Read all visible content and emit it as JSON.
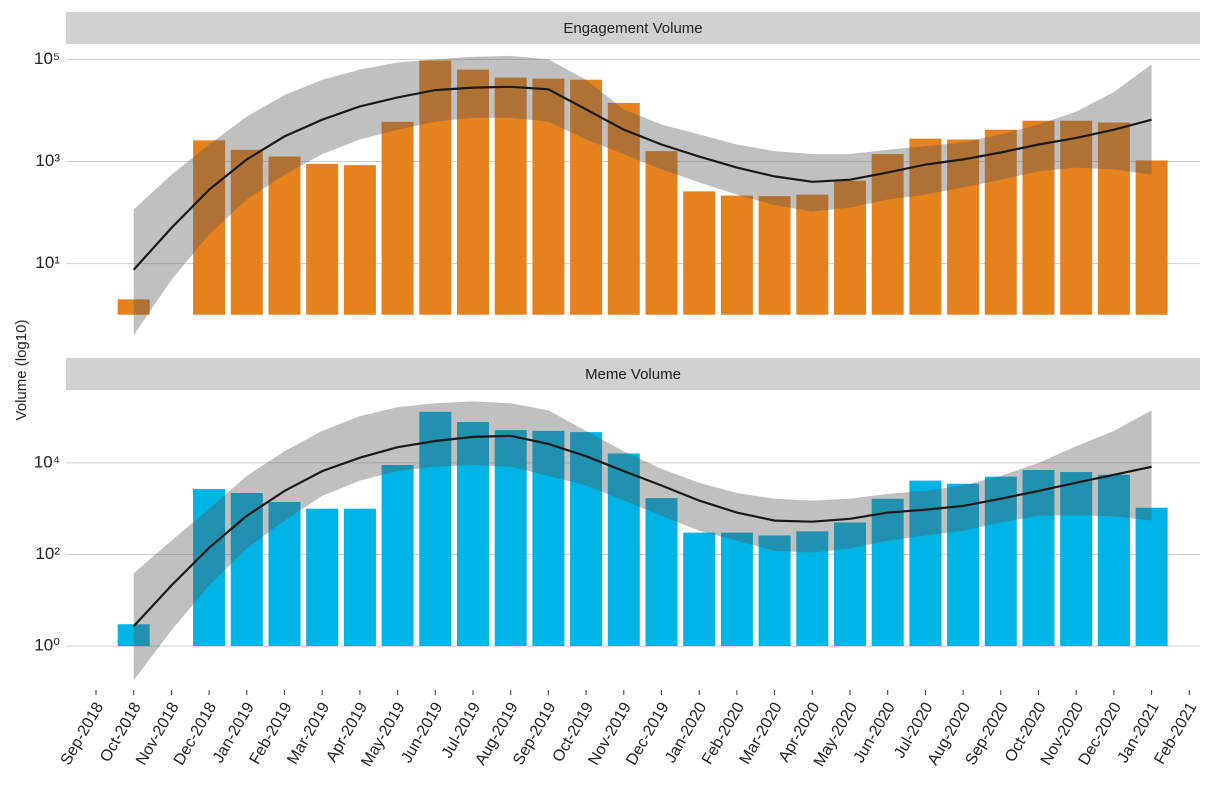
{
  "chart_data": [
    {
      "type": "bar",
      "title": "Engagement Volume",
      "ylabel": "Volume (log10)",
      "log": true,
      "grid": true,
      "color": "#e6821e",
      "categories": [
        "Sep-2018",
        "Oct-2018",
        "Nov-2018",
        "Dec-2018",
        "Jan-2019",
        "Feb-2019",
        "Mar-2019",
        "Apr-2019",
        "May-2019",
        "Jun-2019",
        "Jul-2019",
        "Aug-2019",
        "Sep-2019",
        "Oct-2019",
        "Nov-2019",
        "Dec-2019",
        "Jan-2020",
        "Feb-2020",
        "Mar-2020",
        "Apr-2020",
        "May-2020",
        "Jun-2020",
        "Jul-2020",
        "Aug-2020",
        "Sep-2020",
        "Oct-2020",
        "Nov-2020",
        "Dec-2020",
        "Jan-2021",
        "Feb-2021"
      ],
      "values": [
        null,
        2,
        null,
        2600,
        1700,
        1250,
        900,
        850,
        6000,
        95000,
        63000,
        44000,
        42000,
        40000,
        14000,
        1600,
        260,
        215,
        210,
        225,
        420,
        1400,
        2800,
        2700,
        4200,
        6300,
        6300,
        5800,
        1050,
        null
      ],
      "trend": {
        "values": [
          null,
          7.6,
          50,
          280,
          1100,
          3100,
          6600,
          12000,
          18000,
          25000,
          28000,
          29000,
          26000,
          10500,
          4200,
          2150,
          1250,
          760,
          510,
          400,
          440,
          610,
          870,
          1100,
          1500,
          2150,
          2900,
          4200,
          6600,
          null
        ],
        "upper": [
          null,
          115,
          550,
          2150,
          7600,
          20000,
          40000,
          63000,
          87000,
          100000,
          113000,
          117000,
          100000,
          40000,
          10500,
          5300,
          3400,
          2150,
          1600,
          1400,
          1400,
          1700,
          2000,
          2350,
          3400,
          5300,
          9500,
          23000,
          80000,
          null
        ],
        "lower": [
          null,
          0.4,
          4.8,
          37,
          180,
          550,
          1400,
          2700,
          4200,
          6000,
          7200,
          7200,
          6000,
          2700,
          1400,
          700,
          390,
          225,
          140,
          105,
          125,
          180,
          225,
          310,
          440,
          640,
          760,
          700,
          550,
          null
        ]
      },
      "ylim": [
        0.32,
        200000
      ],
      "yticks": [
        {
          "value": 10,
          "label": "10¹"
        },
        {
          "value": 1000,
          "label": "10³"
        },
        {
          "value": 100000,
          "label": "10⁵"
        }
      ]
    },
    {
      "type": "bar",
      "title": "Meme Volume",
      "log": true,
      "grid": true,
      "color": "#00b4e6",
      "categories": [
        "Sep-2018",
        "Oct-2018",
        "Nov-2018",
        "Dec-2018",
        "Jan-2019",
        "Feb-2019",
        "Mar-2019",
        "Apr-2019",
        "May-2019",
        "Jun-2019",
        "Jul-2019",
        "Aug-2019",
        "Sep-2019",
        "Oct-2019",
        "Nov-2019",
        "Dec-2019",
        "Jan-2020",
        "Feb-2020",
        "Mar-2020",
        "Apr-2020",
        "May-2020",
        "Jun-2020",
        "Jul-2020",
        "Aug-2020",
        "Sep-2020",
        "Oct-2020",
        "Nov-2020",
        "Dec-2020",
        "Jan-2021",
        "Feb-2021"
      ],
      "values": [
        null,
        3,
        null,
        2700,
        2200,
        1400,
        1000,
        1000,
        9000,
        130000,
        78000,
        52000,
        50000,
        47000,
        16000,
        1700,
        300,
        300,
        260,
        320,
        500,
        1650,
        4100,
        3500,
        5000,
        7000,
        6300,
        5500,
        1050,
        null
      ],
      "trend": {
        "values": [
          null,
          2.7,
          21,
          140,
          700,
          2450,
          6600,
          13000,
          22000,
          30000,
          37000,
          39000,
          26000,
          14000,
          6600,
          3200,
          1500,
          820,
          550,
          520,
          600,
          820,
          950,
          1150,
          1650,
          2450,
          3700,
          5500,
          8200,
          null
        ],
        "upper": [
          null,
          39,
          200,
          1000,
          5200,
          18000,
          50000,
          105000,
          165000,
          200000,
          220000,
          200000,
          140000,
          50000,
          18000,
          7400,
          3700,
          2200,
          1650,
          1500,
          1650,
          2100,
          2450,
          3200,
          5200,
          10000,
          23000,
          50000,
          140000,
          null
        ],
        "lower": [
          null,
          0.18,
          2.2,
          21,
          135,
          550,
          1900,
          4100,
          6600,
          8200,
          9000,
          8200,
          5200,
          3200,
          1500,
          700,
          330,
          200,
          120,
          110,
          135,
          200,
          260,
          330,
          500,
          700,
          720,
          680,
          550,
          null
        ]
      },
      "ylim": [
        0.11,
        390000
      ],
      "yticks": [
        {
          "value": 1,
          "label": "10⁰"
        },
        {
          "value": 100,
          "label": "10²"
        },
        {
          "value": 10000,
          "label": "10⁴"
        }
      ]
    }
  ]
}
